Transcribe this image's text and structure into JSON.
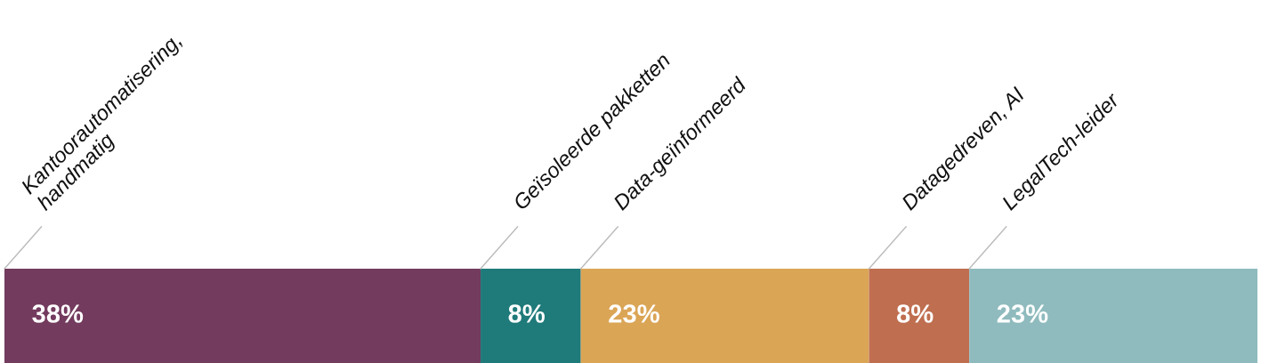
{
  "chart_data": {
    "type": "bar",
    "orientation": "horizontal",
    "stacked": true,
    "categories": [
      null
    ],
    "series": [
      {
        "name": "Kantoorautomatisering,\nhandmatig",
        "color": "#733b5e",
        "values": [
          38
        ],
        "value_labels": [
          "38%"
        ]
      },
      {
        "name": "Geïsoleerde pakketten",
        "color": "#1f7a7a",
        "values": [
          8
        ],
        "value_labels": [
          "8%"
        ]
      },
      {
        "name": "Data-geïnformeerd",
        "color": "#dba556",
        "values": [
          23
        ],
        "value_labels": [
          "23%"
        ]
      },
      {
        "name": "Datagedreven, AI",
        "color": "#bf6e50",
        "values": [
          8
        ],
        "value_labels": [
          "8%"
        ]
      },
      {
        "name": "LegalTech-leider",
        "color": "#8fbbbe",
        "values": [
          23
        ],
        "value_labels": [
          "23%"
        ]
      }
    ]
  }
}
